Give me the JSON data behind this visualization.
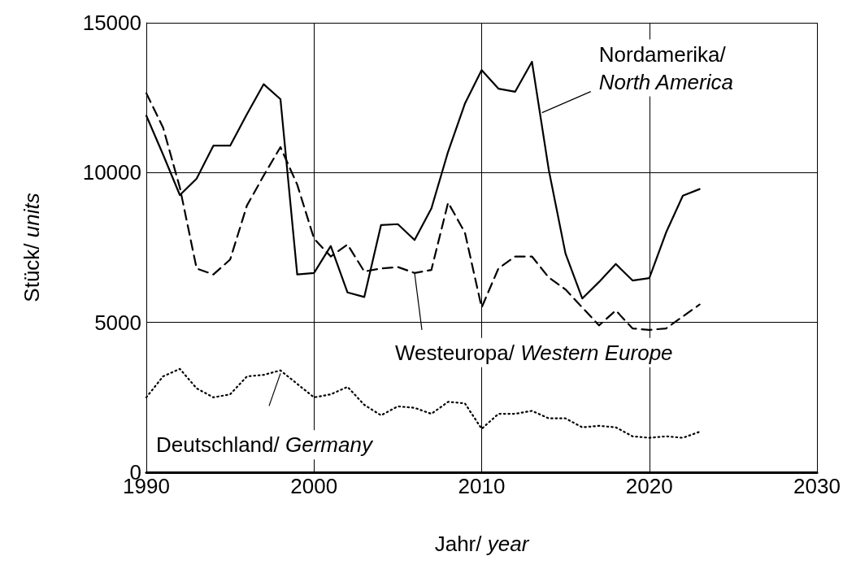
{
  "chart_data": {
    "type": "line",
    "xlabel": "Jahr/ year",
    "ylabel": "Stück/ units",
    "x": [
      1990,
      1991,
      1992,
      1993,
      1994,
      1995,
      1996,
      1997,
      1998,
      1999,
      2000,
      2001,
      2002,
      2003,
      2004,
      2005,
      2006,
      2007,
      2008,
      2009,
      2010,
      2011,
      2012,
      2013,
      2014,
      2015,
      2016,
      2017,
      2018,
      2019,
      2020,
      2021,
      2022,
      2023
    ],
    "series": [
      {
        "color": "#000000",
        "line_style": "solid",
        "values": [
          11900,
          10600,
          9250,
          9800,
          10900,
          10900,
          11950,
          12950,
          12450,
          6600,
          6650,
          7550,
          6000,
          5850,
          8250,
          8280,
          7750,
          8800,
          10700,
          12300,
          13420,
          12800,
          12700,
          13700,
          10100,
          7300,
          5800,
          6350,
          6950,
          6400,
          6480,
          8000,
          9230,
          9450
        ]
      },
      {
        "color": "#000000",
        "line_style": "dashed",
        "values": [
          12650,
          11500,
          9500,
          6800,
          6600,
          7100,
          8900,
          9900,
          10850,
          9600,
          7800,
          7200,
          7600,
          6700,
          6800,
          6850,
          6650,
          6750,
          9000,
          8000,
          5500,
          6800,
          7200,
          7200,
          6500,
          6100,
          5500,
          4900,
          5400,
          4800,
          4750,
          4800,
          5200,
          5600
        ]
      },
      {
        "color": "#000000",
        "line_style": "dotted",
        "values": [
          2500,
          3200,
          3450,
          2800,
          2500,
          2600,
          3200,
          3250,
          3400,
          2950,
          2500,
          2600,
          2850,
          2250,
          1900,
          2200,
          2150,
          1950,
          2350,
          2300,
          1450,
          1950,
          1950,
          2050,
          1800,
          1800,
          1500,
          1550,
          1500,
          1200,
          1150,
          1200,
          1150,
          1350
        ]
      }
    ],
    "xlim": [
      1990,
      2030
    ],
    "xticks": [
      1990,
      2000,
      2010,
      2020,
      2030
    ],
    "ylim": [
      0,
      15000
    ],
    "yticks": [
      0,
      5000,
      10000,
      15000
    ],
    "grid": true,
    "marker": "none",
    "annotations": [
      {
        "text": "Nordamerika/ North America",
        "x": 2013.6,
        "y": 12000
      },
      {
        "text": "Westeuropa/ Western Europe",
        "x": 2006,
        "y": 6650
      },
      {
        "text": "Deutschland/ Germany",
        "x": 1998,
        "y": 3300
      }
    ]
  }
}
